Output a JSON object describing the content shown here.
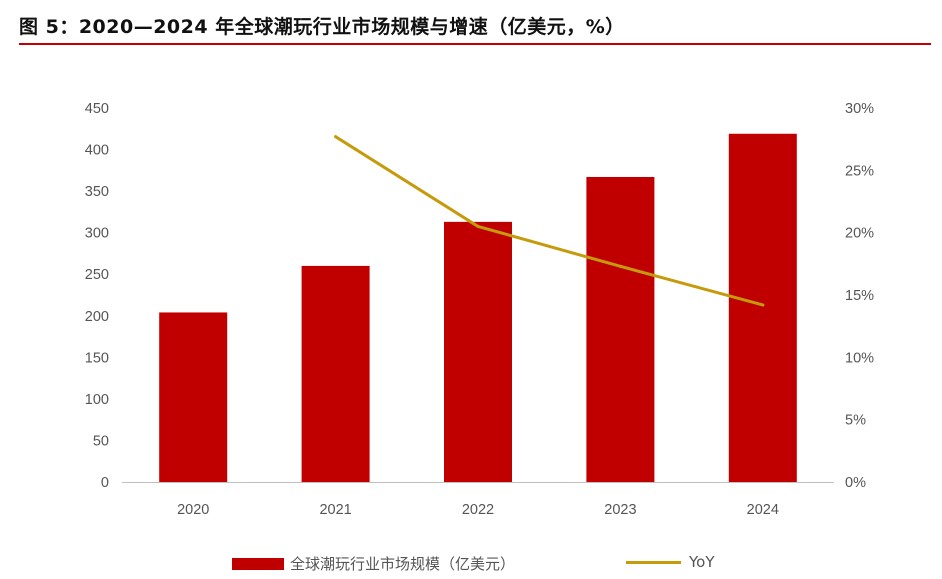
{
  "figure": {
    "title": "图 5：2020—2024 年全球潮玩行业市场规模与增速（亿美元，%）"
  },
  "colors": {
    "bar": "#c00000",
    "line": "#c59b0c",
    "rule": "#c00000",
    "axis": "#bfbfbf"
  },
  "chart_data": {
    "type": "bar",
    "categories": [
      "2020",
      "2021",
      "2022",
      "2023",
      "2024"
    ],
    "series": [
      {
        "name": "全球潮玩行业市场规模（亿美元）",
        "type": "bar",
        "axis": "left",
        "values": [
          204,
          260,
          313,
          367,
          419
        ]
      },
      {
        "name": "YoY",
        "type": "line",
        "axis": "right",
        "values": [
          null,
          27.7,
          20.5,
          17.3,
          14.2
        ]
      }
    ],
    "y_left": {
      "ylim": [
        0,
        450
      ],
      "ticks": [
        0,
        50,
        100,
        150,
        200,
        250,
        300,
        350,
        400,
        450
      ],
      "tick_labels": [
        "0",
        "50",
        "100",
        "150",
        "200",
        "250",
        "300",
        "350",
        "400",
        "450"
      ]
    },
    "y_right": {
      "ylim": [
        0,
        30
      ],
      "ticks": [
        0,
        5,
        10,
        15,
        20,
        25,
        30
      ],
      "tick_labels": [
        "0%",
        "5%",
        "10%",
        "15%",
        "20%",
        "25%",
        "30%"
      ]
    },
    "grid": false,
    "legend": "bottom"
  }
}
